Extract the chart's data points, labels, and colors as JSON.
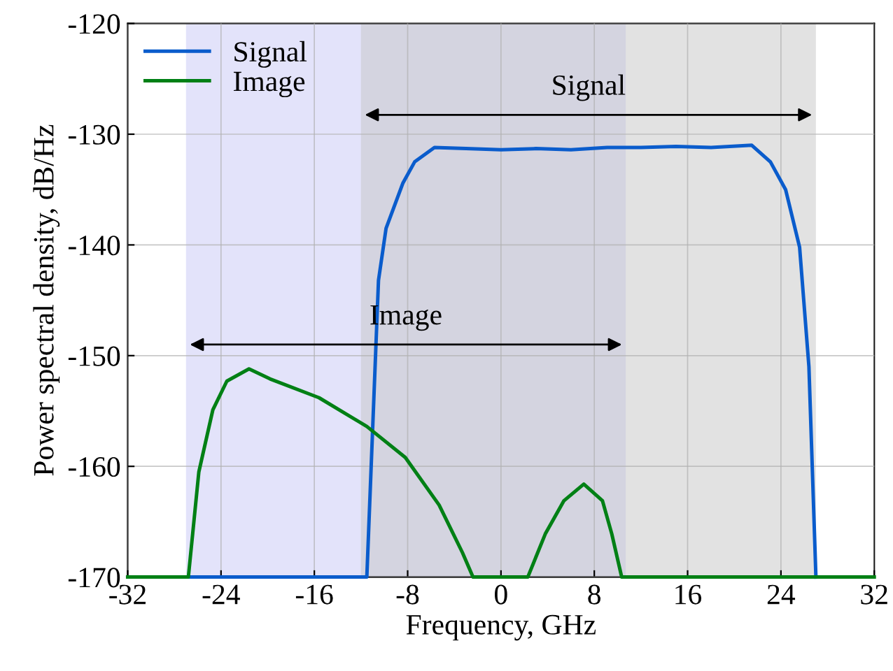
{
  "chart_data": {
    "type": "line",
    "xlabel": "Frequency, GHz",
    "ylabel": "Power spectral density, dB/Hz",
    "xlim": [
      -32,
      32
    ],
    "xticks": [
      -32,
      -24,
      -16,
      -8,
      0,
      8,
      16,
      24,
      32
    ],
    "ylim": [
      -170,
      -120
    ],
    "yticks": [
      -170,
      -160,
      -150,
      -140,
      -130,
      -120
    ],
    "grid": true,
    "legend": "top left",
    "bands": [
      {
        "axis": "x",
        "from": -27,
        "to": 10.7,
        "label": "Image",
        "color": "#c8c8f5"
      },
      {
        "axis": "x",
        "from": -12,
        "to": 27,
        "label": "Signal",
        "color": "#c6c6c6"
      }
    ],
    "series": [
      {
        "name": "Signal",
        "color": "#0a5ccc",
        "x": [
          -32,
          -11.5,
          -10.5,
          -9.85,
          -8.4,
          -7.4,
          -5.7,
          -3,
          0,
          3,
          6,
          9.1,
          12,
          15,
          18,
          21.5,
          23.1,
          24.4,
          25.6,
          26.4,
          27
        ],
        "values": [
          -170,
          -170,
          -143.2,
          -138.5,
          -134.4,
          -132.5,
          -131.2,
          -131.3,
          -131.4,
          -131.3,
          -131.4,
          -131.2,
          -131.2,
          -131.1,
          -131.2,
          -131,
          -132.5,
          -135,
          -140.2,
          -151,
          -170
        ]
      },
      {
        "name": "Image",
        "color": "#008015",
        "x": [
          -32,
          -26.8,
          -25.9,
          -24.7,
          -23.5,
          -21.6,
          -19.8,
          -15.6,
          -11.5,
          -8.2,
          -5.3,
          -3.3,
          -2.4,
          2.3,
          3.8,
          5.4,
          7.1,
          8.7,
          9.5,
          10.35,
          32
        ],
        "values": [
          -170,
          -170,
          -160.5,
          -154.9,
          -152.3,
          -151.2,
          -152.1,
          -153.8,
          -156.4,
          -159.2,
          -163.5,
          -167.8,
          -170,
          -170,
          -166.1,
          -163.1,
          -161.6,
          -163.1,
          -166.1,
          -170,
          -170
        ]
      }
    ]
  }
}
